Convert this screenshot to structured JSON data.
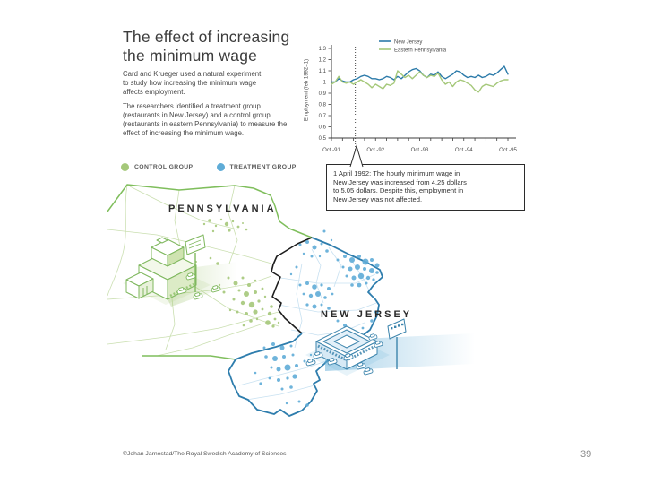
{
  "slide": {
    "title_line1": "The effect of increasing",
    "title_line2": "the minimum wage",
    "intro_lines": [
      "Card and Krueger used a natural experiment",
      "to study how increasing the minimum wage",
      "affects employment."
    ],
    "method_lines": [
      "The researchers identified a treatment group",
      "(restaurants in New Jersey) and a control group",
      "(restaurants in eastern Pennsylvania) to measure the",
      "effect of increasing the minimum wage."
    ],
    "credit": "©Johan Jarnestad/The Royal Swedish Academy of Sciences",
    "page_number": "39"
  },
  "group_legend": {
    "control_label": "CONTROL GROUP",
    "treatment_label": "TREATMENT GROUP",
    "control_color": "#a5c87a",
    "treatment_color": "#5facd7"
  },
  "annotation": {
    "lines": [
      "1 April 1992: The hourly minimum wage in",
      "New Jersey was increased from 4.25 dollars",
      "to 5.05 dollars. Despite this, employment in",
      "New Jersey was not affected."
    ]
  },
  "map": {
    "pennsylvania_label": "PENNSYLVANIA",
    "new_jersey_label": "NEW JERSEY",
    "control_dots": [
      [
        113,
        52,
        1.2
      ],
      [
        119,
        48,
        1.8
      ],
      [
        126,
        54,
        1.2
      ],
      [
        132,
        47,
        1.2
      ],
      [
        138,
        52,
        2.2
      ],
      [
        145,
        49,
        1.2
      ],
      [
        151,
        55,
        1.4
      ],
      [
        123,
        60,
        1.2
      ],
      [
        141,
        59,
        1.6
      ],
      [
        156,
        51,
        1.0
      ],
      [
        160,
        58,
        1.3
      ],
      [
        95,
        100,
        1.4
      ],
      [
        104,
        94,
        1.0
      ],
      [
        88,
        90,
        1.0
      ],
      [
        120,
        90,
        1.3
      ],
      [
        128,
        96,
        1.8
      ],
      [
        130,
        120,
        1.2
      ],
      [
        135,
        128,
        1.5
      ],
      [
        142,
        148,
        1.2
      ],
      [
        140,
        112,
        1.5
      ],
      [
        148,
        118,
        2.5
      ],
      [
        156,
        112,
        1.5
      ],
      [
        163,
        120,
        2.0
      ],
      [
        170,
        115,
        1.2
      ],
      [
        152,
        126,
        1.5
      ],
      [
        160,
        130,
        3.0
      ],
      [
        170,
        128,
        2.0
      ],
      [
        178,
        124,
        1.4
      ],
      [
        146,
        136,
        1.5
      ],
      [
        156,
        140,
        2.2
      ],
      [
        166,
        142,
        3.2
      ],
      [
        174,
        138,
        1.6
      ],
      [
        181,
        133,
        1.2
      ],
      [
        150,
        150,
        1.5
      ],
      [
        160,
        152,
        2.0
      ],
      [
        170,
        150,
        2.6
      ],
      [
        178,
        147,
        1.4
      ],
      [
        165,
        160,
        1.8
      ],
      [
        172,
        158,
        1.2
      ],
      [
        157,
        165,
        1.3
      ],
      [
        186,
        152,
        2.2
      ],
      [
        192,
        158,
        1.4
      ],
      [
        184,
        162,
        2.8
      ],
      [
        190,
        166,
        1.6
      ],
      [
        196,
        162,
        1.2
      ],
      [
        188,
        144,
        1.8
      ]
    ],
    "treatment_dots": [
      [
        220,
        75,
        1.5
      ],
      [
        228,
        72,
        2.0
      ],
      [
        236,
        78,
        2.5
      ],
      [
        244,
        74,
        1.5
      ],
      [
        250,
        82,
        1.8
      ],
      [
        224,
        85,
        1.2
      ],
      [
        233,
        88,
        1.5
      ],
      [
        242,
        88,
        1.2
      ],
      [
        247,
        60,
        1.5
      ],
      [
        255,
        70,
        1.2
      ],
      [
        262,
        92,
        1.5
      ],
      [
        270,
        88,
        2.0
      ],
      [
        278,
        92,
        3.0
      ],
      [
        286,
        88,
        2.0
      ],
      [
        293,
        94,
        3.5
      ],
      [
        300,
        92,
        2.0
      ],
      [
        306,
        98,
        2.5
      ],
      [
        268,
        100,
        1.5
      ],
      [
        276,
        102,
        2.5
      ],
      [
        284,
        100,
        3.0
      ],
      [
        292,
        102,
        2.0
      ],
      [
        300,
        104,
        3.0
      ],
      [
        306,
        106,
        1.8
      ],
      [
        272,
        110,
        1.5
      ],
      [
        280,
        112,
        2.5
      ],
      [
        288,
        110,
        3.2
      ],
      [
        296,
        112,
        2.2
      ],
      [
        302,
        114,
        1.6
      ],
      [
        278,
        120,
        1.8
      ],
      [
        286,
        120,
        2.4
      ],
      [
        294,
        118,
        1.5
      ],
      [
        216,
        100,
        1.5
      ],
      [
        210,
        108,
        1.2
      ],
      [
        220,
        120,
        1.5
      ],
      [
        228,
        118,
        2.0
      ],
      [
        236,
        122,
        2.8
      ],
      [
        244,
        120,
        1.6
      ],
      [
        252,
        124,
        2.0
      ],
      [
        224,
        130,
        1.4
      ],
      [
        232,
        132,
        2.2
      ],
      [
        240,
        130,
        3.0
      ],
      [
        248,
        134,
        1.8
      ],
      [
        256,
        130,
        1.4
      ],
      [
        228,
        142,
        1.6
      ],
      [
        236,
        144,
        2.5
      ],
      [
        244,
        142,
        1.5
      ],
      [
        252,
        146,
        1.8
      ],
      [
        262,
        160,
        1.5
      ],
      [
        270,
        165,
        2.0
      ],
      [
        255,
        175,
        1.4
      ],
      [
        304,
        150,
        1.5
      ],
      [
        300,
        160,
        1.8
      ],
      [
        290,
        168,
        1.4
      ],
      [
        180,
        190,
        1.5
      ],
      [
        190,
        186,
        2.0
      ],
      [
        200,
        190,
        2.5
      ],
      [
        210,
        188,
        1.5
      ],
      [
        182,
        200,
        1.8
      ],
      [
        192,
        202,
        3.0
      ],
      [
        202,
        200,
        2.0
      ],
      [
        212,
        198,
        1.5
      ],
      [
        188,
        212,
        1.5
      ],
      [
        196,
        214,
        2.5
      ],
      [
        206,
        212,
        3.5
      ],
      [
        216,
        210,
        2.0
      ],
      [
        186,
        224,
        1.4
      ],
      [
        196,
        226,
        2.0
      ],
      [
        206,
        224,
        1.6
      ],
      [
        214,
        222,
        2.6
      ],
      [
        200,
        236,
        1.5
      ],
      [
        210,
        234,
        1.8
      ],
      [
        225,
        205,
        1.5
      ],
      [
        232,
        198,
        1.2
      ],
      [
        170,
        218,
        1.3
      ],
      [
        176,
        230,
        1.6
      ],
      [
        219,
        250,
        1.5
      ],
      [
        228,
        254,
        1.8
      ],
      [
        205,
        252,
        1.2
      ]
    ]
  },
  "chart_data": {
    "type": "line",
    "ylabel": "Employment (feb 1992=1)",
    "x_tick_labels": [
      "Oct -91",
      "Oct -92",
      "Oct -93",
      "Oct -94",
      "Oct -95"
    ],
    "y_ticks": [
      0.5,
      0.6,
      0.7,
      0.8,
      0.9,
      1,
      1.1,
      1.2,
      1.3
    ],
    "ylim": [
      0.5,
      1.3
    ],
    "x_months_span": 48,
    "event_month": 6.5,
    "grid": false,
    "legend_position": "top-inside",
    "series": [
      {
        "name": "New Jersey",
        "color": "#2b7aa9",
        "values": [
          1.0,
          1.0,
          1.03,
          1.01,
          1.0,
          1.0,
          1.02,
          1.03,
          1.05,
          1.06,
          1.05,
          1.03,
          1.03,
          1.02,
          1.03,
          1.05,
          1.04,
          1.02,
          1.05,
          1.03,
          1.06,
          1.09,
          1.11,
          1.12,
          1.1,
          1.06,
          1.04,
          1.07,
          1.06,
          1.09,
          1.05,
          1.03,
          1.05,
          1.07,
          1.1,
          1.09,
          1.06,
          1.04,
          1.05,
          1.04,
          1.06,
          1.04,
          1.05,
          1.07,
          1.06,
          1.08,
          1.11,
          1.14,
          1.07
        ]
      },
      {
        "name": "Eastern Pennsylvania",
        "color": "#a5c87a",
        "values": [
          0.98,
          1.0,
          1.05,
          1.0,
          0.99,
          1.0,
          0.98,
          1.0,
          1.02,
          1.0,
          0.98,
          0.95,
          0.98,
          0.96,
          0.94,
          0.98,
          0.97,
          0.99,
          1.1,
          1.07,
          1.04,
          1.06,
          1.03,
          1.06,
          1.09,
          1.06,
          1.04,
          1.06,
          1.05,
          1.08,
          1.02,
          0.98,
          1.0,
          0.96,
          1.0,
          1.02,
          1.01,
          0.99,
          0.97,
          0.93,
          0.91,
          0.96,
          0.98,
          0.97,
          0.96,
          0.99,
          1.01,
          1.02,
          1.02
        ]
      }
    ]
  }
}
